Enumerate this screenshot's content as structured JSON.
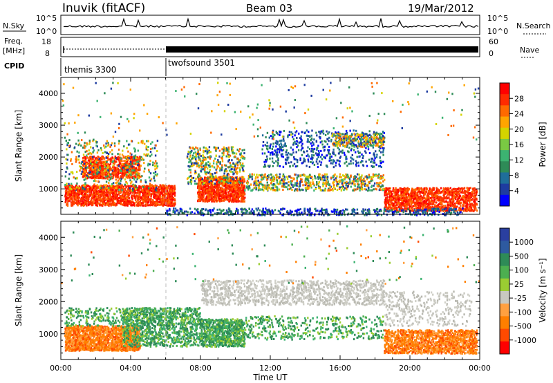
{
  "header": {
    "station": "Inuvik (fitACF)",
    "beam": "Beam 03",
    "date": "19/Mar/2012"
  },
  "nsky": {
    "label": "N.Sky",
    "ticks": [
      "10^5",
      "10^0"
    ],
    "right_ticks": [
      "10^5",
      "10^0"
    ],
    "right_label": "N.Search"
  },
  "freq": {
    "label_top": "Freq.",
    "label_unit": "[MHz]",
    "ticks": [
      "18",
      "8"
    ],
    "right_ticks": [
      "60",
      "0"
    ],
    "right_label": "Nave"
  },
  "cpid": {
    "label": "CPID",
    "segments": [
      "themis 3300",
      "twofsound 3501"
    ]
  },
  "chart_data": [
    {
      "type": "heatmap",
      "name": "power",
      "ylabel": "Slant Range [km]",
      "xlabel": "",
      "x_range_hours": [
        0,
        24
      ],
      "ylim": [
        200,
        4500
      ],
      "yticks": [
        "1000",
        "2000",
        "3000",
        "4000"
      ],
      "colorbar": {
        "label": "Power [dB]",
        "ticks": [
          "28",
          "24",
          "20",
          "16",
          "12",
          "8",
          "4"
        ],
        "colors": [
          "#ff0000",
          "#ff2b00",
          "#ff6a00",
          "#ffa500",
          "#d4d400",
          "#7ac943",
          "#3cb371",
          "#2e8b57",
          "#1f6e9a",
          "#1e3ca0",
          "#0000ff"
        ]
      }
    },
    {
      "type": "heatmap",
      "name": "velocity",
      "ylabel": "Slant Range [km]",
      "xlabel": "Time UT",
      "x_range_hours": [
        0,
        24
      ],
      "ylim": [
        200,
        4500
      ],
      "yticks": [
        "1000",
        "2000",
        "3000",
        "4000"
      ],
      "xticks": [
        "00:00",
        "04:00",
        "08:00",
        "12:00",
        "16:00",
        "20:00",
        "00:00"
      ],
      "colorbar": {
        "label": "Velocity [m s⁻¹]",
        "ticks": [
          "1000",
          "500",
          "100",
          "25",
          "-25",
          "-100",
          "-500",
          "-1000"
        ],
        "colors": [
          "#2a3fa0",
          "#2e5aa0",
          "#2e8b57",
          "#4caf50",
          "#9acd32",
          "#c8c8c0",
          "#ffa040",
          "#ff7f00",
          "#ff4a00",
          "#ff0000"
        ]
      }
    }
  ]
}
